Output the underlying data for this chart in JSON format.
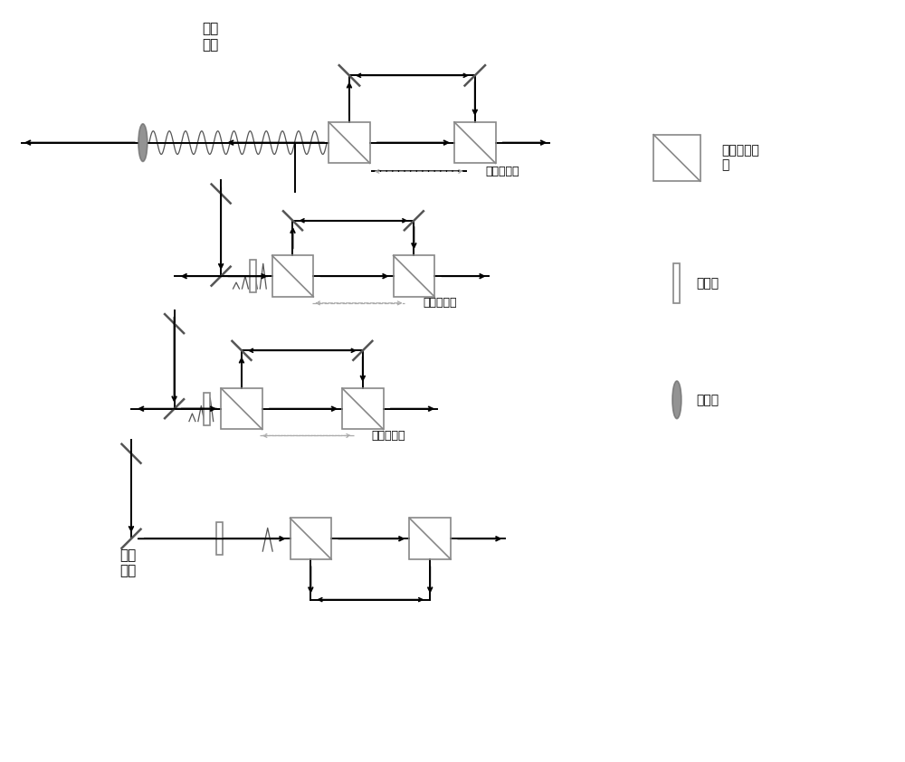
{
  "bg_color": "#ffffff",
  "line_color": "#000000",
  "component_color": "#888888",
  "mirror_color": "#555555",
  "dashed_color": "#aaaaaa",
  "figsize": [
    10.0,
    8.42
  ],
  "dpi": 100,
  "legend_pbs_label": "偏振分光棱\n镜",
  "legend_hwp_label": "半波片",
  "legend_exp_label": "扩束器",
  "label_stacked": "堆积\n脉冲",
  "label_incident": "入射\n脉冲",
  "label_delay1": "光学延迟线",
  "label_delay2": "光学延迟线",
  "label_delay3": "光学延迟线",
  "xlim": [
    0,
    10
  ],
  "ylim": [
    0,
    8.42
  ]
}
